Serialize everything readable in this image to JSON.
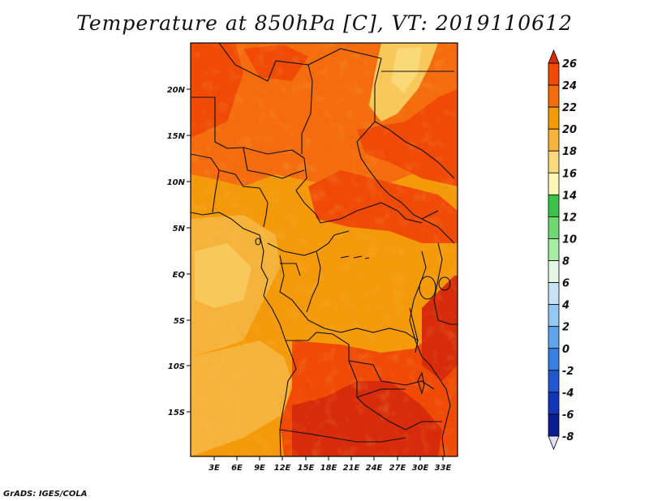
{
  "title": "Temperature at 850hPa [C], VT: 2019110612",
  "credit": "GrADS: IGES/COLA",
  "lat_ticks": [
    "20N",
    "15N",
    "10N",
    "5N",
    "EQ",
    "5S",
    "10S",
    "15S"
  ],
  "lon_ticks": [
    "3E",
    "6E",
    "9E",
    "12E",
    "15E",
    "18E",
    "21E",
    "24E",
    "27E",
    "30E",
    "33E"
  ],
  "colorbar": {
    "labels": [
      "26",
      "24",
      "22",
      "20",
      "18",
      "16",
      "14",
      "12",
      "10",
      "8",
      "6",
      "4",
      "2",
      "0",
      "-2",
      "-4",
      "-6",
      "-8"
    ],
    "colors": [
      "#d72b0a",
      "#f04a06",
      "#f46c0d",
      "#f49a0a",
      "#f6b33c",
      "#fad97a",
      "#fdf7b5",
      "#39c449",
      "#6fd870",
      "#a7eda4",
      "#e4f7e2",
      "#c6e3f6",
      "#93c8f1",
      "#5fa5ec",
      "#3a7ee4",
      "#2257d2",
      "#1236b8",
      "#0a1c94",
      "#051060"
    ]
  },
  "field_colors": {
    "c14": "#fad97a",
    "c16": "#f8c95a",
    "c18": "#f6b33c",
    "c20": "#f49a0a",
    "c22": "#f46c0d",
    "c24": "#f04a06",
    "c26": "#d72b0a"
  }
}
